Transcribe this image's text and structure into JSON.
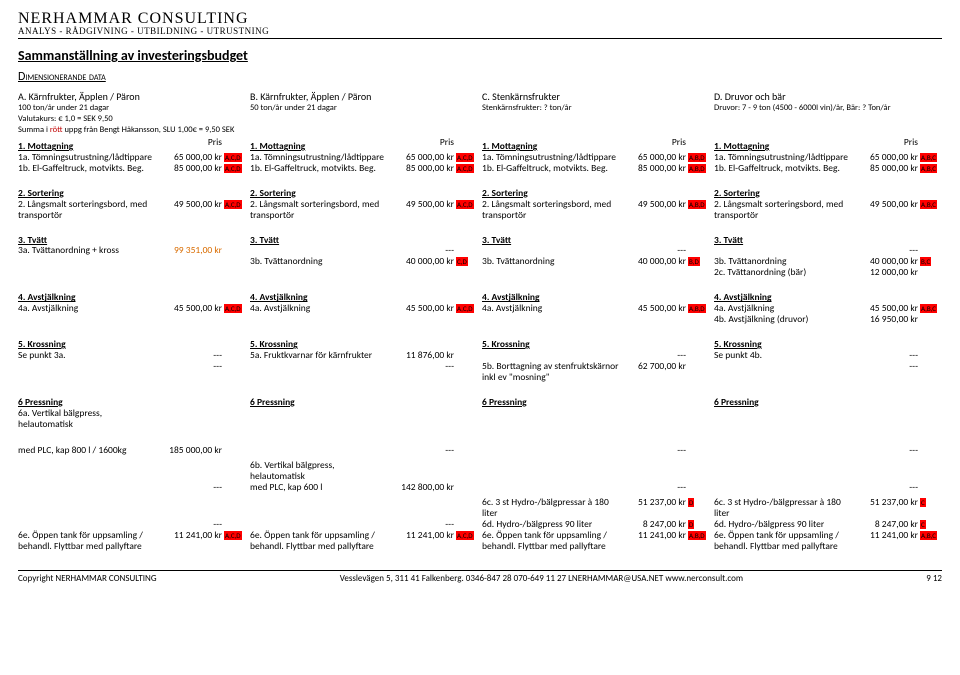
{
  "header": {
    "company": "NERHAMMAR CONSULTING",
    "tagline": "ANALYS - RÅDGIVNING - UTBILDNING - UTRUSTNING"
  },
  "title": "Sammanställning av investeringsbudget",
  "subtitle": "Dimensionerande data",
  "meta": {
    "valutakurs": "Valutakurs: € 1,0 = SEK 9,50",
    "summa_pre": "Summa i ",
    "summa_red": "rött",
    "summa_post": " uppg från Bengt Håkansson, SLU 1,00€ = 9,50 SEK"
  },
  "columns": [
    {
      "head": "A. Kärnfrukter, Äpplen / Päron",
      "sub": "100 ton/år under 21 dagar",
      "tag_suffix": "A,C,D"
    },
    {
      "head": "B. Kärnfrukter, Äpplen / Päron",
      "sub": "50 ton/år under 21 dagar",
      "tag_suffix": "A,C,D"
    },
    {
      "head": "C. Stenkärnsfrukter",
      "sub": "Stenkärnsfrukter: ? ton/år",
      "tag_suffix": "A,B,D"
    },
    {
      "head": "D. Druvor och bär",
      "sub": "Druvor: 7 - 9 ton (4500 - 6000l vin)/år, Bär: ? Ton/år",
      "tag_suffix": "A,B,C"
    }
  ],
  "pris_label": "Pris",
  "sections": [
    {
      "head": "1. Mottagning",
      "show_pris": true,
      "rows": [
        [
          {
            "txt": "1a. Tömningsutrustning/lådtippare",
            "prc": "65 000,00 kr",
            "tag": "A,C,D"
          },
          {
            "txt": "1a. Tömningsutrustning/lådtippare",
            "prc": "65 000,00 kr",
            "tag": "A,C,D"
          },
          {
            "txt": "1a. Tömningsutrustning/lådtippare",
            "prc": "65 000,00 kr",
            "tag": "A,B,D"
          },
          {
            "txt": "1a. Tömningsutrustning/lådtippare",
            "prc": "65 000,00 kr",
            "tag": "A,B,C"
          }
        ],
        [
          {
            "txt": "1b. El-Gaffeltruck, motvikts. Beg.",
            "prc": "85 000,00 kr",
            "tag": "A,C,D"
          },
          {
            "txt": "1b. El-Gaffeltruck, motvikts. Beg.",
            "prc": "85 000,00 kr",
            "tag": "A,C,D"
          },
          {
            "txt": "1b. El-Gaffeltruck, motvikts. Beg.",
            "prc": "85 000,00 kr",
            "tag": "A,B,D"
          },
          {
            "txt": "1b. El-Gaffeltruck, motvikts. Beg.",
            "prc": "85 000,00 kr",
            "tag": "A,B,C"
          }
        ]
      ]
    },
    {
      "head": "2. Sortering",
      "rows": [
        [
          {
            "txt": "2. Långsmalt sorteringsbord, med transportör",
            "prc": "49 500,00 kr",
            "tag": "A,C,D"
          },
          {
            "txt": "2. Långsmalt sorteringsbord, med transportör",
            "prc": "49 500,00 kr",
            "tag": "A,C,D"
          },
          {
            "txt": "2. Långsmalt sorteringsbord, med transportör",
            "prc": "49 500,00 kr",
            "tag": "A,B,D"
          },
          {
            "txt": "2. Långsmalt sorteringsbord, med transportör",
            "prc": "49 500,00 kr",
            "tag": "A,B,C"
          }
        ]
      ]
    },
    {
      "head": "3. Tvätt",
      "rows": [
        [
          {
            "txt": "3a. Tvättanordning + kross",
            "prc": "99 351,00 kr",
            "tag": " ",
            "orange": true
          },
          {
            "txt": "",
            "prc": "---",
            "tag": ""
          },
          {
            "txt": "",
            "prc": "---",
            "tag": ""
          },
          {
            "txt": "",
            "prc": "---",
            "tag": ""
          }
        ],
        [
          {
            "txt": "",
            "prc": "",
            "tag": ""
          },
          {
            "txt": "3b. Tvättanordning",
            "prc": "40 000,00 kr",
            "tag": "C,D"
          },
          {
            "txt": "3b. Tvättanordning",
            "prc": "40 000,00 kr",
            "tag": "B,D"
          },
          {
            "txt": "3b. Tvättanordning",
            "prc": "40 000,00 kr",
            "tag": "B,C"
          }
        ],
        [
          {
            "txt": "",
            "prc": "",
            "tag": ""
          },
          {
            "txt": "",
            "prc": "",
            "tag": ""
          },
          {
            "txt": "",
            "prc": "",
            "tag": ""
          },
          {
            "txt": "2c. Tvättanordning (bär)",
            "prc": "12 000,00 kr",
            "tag": " "
          }
        ]
      ]
    },
    {
      "head": "4. Avstjälkning",
      "rows": [
        [
          {
            "txt": "4a. Avstjälkning",
            "prc": "45 500,00 kr",
            "tag": "A,C,D"
          },
          {
            "txt": "4a. Avstjälkning",
            "prc": "45 500,00 kr",
            "tag": "A,C,D"
          },
          {
            "txt": "4a. Avstjälkning",
            "prc": "45 500,00 kr",
            "tag": "A,B,D"
          },
          {
            "txt": "4a. Avstjälkning",
            "prc": "45 500,00 kr",
            "tag": "A,B,C"
          }
        ],
        [
          {
            "txt": "",
            "prc": "",
            "tag": ""
          },
          {
            "txt": "",
            "prc": "",
            "tag": ""
          },
          {
            "txt": "",
            "prc": "",
            "tag": ""
          },
          {
            "txt": "4b. Avstjälkning (druvor)",
            "prc": "16 950,00 kr",
            "tag": " "
          }
        ]
      ]
    },
    {
      "head": "5. Krossning",
      "rows": [
        [
          {
            "txt": "Se punkt 3a.",
            "prc": "---",
            "tag": " "
          },
          {
            "txt": "5a. Fruktkvarnar för kärnfrukter",
            "prc": "11 876,00 kr",
            "tag": ""
          },
          {
            "txt": "",
            "prc": "---",
            "tag": ""
          },
          {
            "txt": "Se punkt 4b.",
            "prc": "---",
            "tag": ""
          }
        ],
        [
          {
            "txt": "",
            "prc": "---",
            "tag": ""
          },
          {
            "txt": "",
            "prc": "---",
            "tag": ""
          },
          {
            "txt": "5b. Borttagning av stenfruktskärnor inkl ev \"mosning\"",
            "prc": "62 700,00 kr",
            "tag": " "
          },
          {
            "txt": "",
            "prc": "---",
            "tag": ""
          }
        ]
      ]
    },
    {
      "head": "6 Pressning",
      "rows": [
        [
          {
            "txt": "6a. Vertikal bälgpress, helautomatisk",
            "prc": "",
            "tag": ""
          },
          {
            "txt": "",
            "prc": "",
            "tag": ""
          },
          {
            "txt": "",
            "prc": "",
            "tag": ""
          },
          {
            "txt": "",
            "prc": "",
            "tag": ""
          }
        ]
      ]
    }
  ],
  "press_rows": [
    [
      {
        "txt": "med PLC, kap 800 l / 1600kg",
        "prc": "185 000,00 kr",
        "tag": " "
      },
      {
        "txt": "",
        "prc": "---",
        "tag": ""
      },
      {
        "txt": "",
        "prc": "---",
        "tag": ""
      },
      {
        "txt": "",
        "prc": "---",
        "tag": ""
      }
    ],
    [
      {
        "txt": "",
        "prc": "",
        "tag": ""
      },
      {
        "txt": "6b. Vertikal bälgpress, helautomatisk",
        "prc": "",
        "tag": ""
      },
      {
        "txt": "",
        "prc": "",
        "tag": ""
      },
      {
        "txt": "",
        "prc": "",
        "tag": ""
      }
    ],
    [
      {
        "txt": "",
        "prc": "---",
        "tag": ""
      },
      {
        "txt": "med PLC, kap 600 l",
        "prc": "142 800,00 kr",
        "tag": " "
      },
      {
        "txt": "",
        "prc": "---",
        "tag": ""
      },
      {
        "txt": "",
        "prc": "---",
        "tag": ""
      }
    ],
    [
      {
        "txt": "",
        "prc": "",
        "tag": ""
      },
      {
        "txt": "",
        "prc": "",
        "tag": ""
      },
      {
        "txt": "6c. 3 st Hydro-/bälgpressar à 180 liter",
        "prc": "51 237,00 kr",
        "tag": "D"
      },
      {
        "txt": "6c. 3 st Hydro-/bälgpressar à 180 liter",
        "prc": "51 237,00 kr",
        "tag": "C"
      }
    ],
    [
      {
        "txt": "",
        "prc": "---",
        "tag": ""
      },
      {
        "txt": "",
        "prc": "---",
        "tag": ""
      },
      {
        "txt": "6d. Hydro-/bälgpress 90 liter",
        "prc": "8 247,00 kr",
        "tag": "D"
      },
      {
        "txt": "6d. Hydro-/bälgpress 90 liter",
        "prc": "8 247,00 kr",
        "tag": "C"
      }
    ],
    [
      {
        "txt": "6e. Öppen tank för uppsamling / behandl. Flyttbar med pallyftare",
        "prc": "11 241,00 kr",
        "tag": "A,C,D"
      },
      {
        "txt": "6e. Öppen tank för uppsamling / behandl. Flyttbar med pallyftare",
        "prc": "11 241,00 kr",
        "tag": "A,C,D"
      },
      {
        "txt": "6e. Öppen tank för uppsamling / behandl. Flyttbar med pallyftare",
        "prc": "11 241,00 kr",
        "tag": "A,B,D"
      },
      {
        "txt": "6e. Öppen tank för uppsamling / behandl. Flyttbar med pallyftare",
        "prc": "11 241,00 kr",
        "tag": "A,B,C"
      }
    ]
  ],
  "footer": {
    "left": "Copyright NERHAMMAR CONSULTING",
    "center": "Vesslevägen 5, 311 41 Falkenberg.   0346-847 28   070-649 11 27   LNERHAMMAR@USA.NET   www.nerconsult.com",
    "right": "9   12"
  }
}
